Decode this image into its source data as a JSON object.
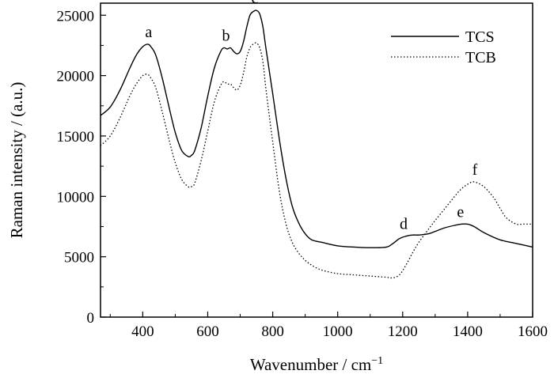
{
  "chart_data": {
    "type": "line",
    "title": "",
    "xlabel": "Wavenumber / cm",
    "xlabel_superscript": "−1",
    "ylabel": "Raman intensity / (a.u.)",
    "xlim": [
      270,
      1600
    ],
    "ylim": [
      0,
      26000
    ],
    "xticks": [
      400,
      600,
      800,
      1000,
      1200,
      1400,
      1600
    ],
    "xtick_labels": [
      "400",
      "600",
      "800",
      "1000",
      "1200",
      "1400",
      "1600"
    ],
    "yticks": [
      0,
      5000,
      10000,
      15000,
      20000,
      25000
    ],
    "ytick_labels": [
      "0",
      "5000",
      "10000",
      "15000",
      "20000",
      "25000"
    ],
    "grid": false,
    "legend_position": "top-right",
    "series": [
      {
        "name": "TCS",
        "line_style": "solid",
        "color": "#000000",
        "x": [
          270,
          300,
          330,
          360,
          380,
          400,
          415,
          425,
          440,
          460,
          480,
          500,
          520,
          540,
          550,
          560,
          580,
          600,
          620,
          640,
          650,
          660,
          670,
          680,
          690,
          700,
          710,
          720,
          730,
          740,
          750,
          760,
          770,
          780,
          800,
          820,
          840,
          860,
          880,
          900,
          920,
          950,
          1000,
          1050,
          1100,
          1150,
          1170,
          1190,
          1210,
          1230,
          1250,
          1280,
          1300,
          1330,
          1360,
          1380,
          1400,
          1420,
          1450,
          1500,
          1550,
          1600
        ],
        "y": [
          16700,
          17400,
          18800,
          20600,
          21700,
          22400,
          22600,
          22400,
          21700,
          19800,
          17500,
          15300,
          13800,
          13300,
          13400,
          13800,
          15700,
          18300,
          20600,
          22000,
          22300,
          22200,
          22300,
          22000,
          21800,
          22000,
          22800,
          24000,
          25000,
          25300,
          25400,
          25100,
          24000,
          22100,
          18500,
          14800,
          11600,
          9200,
          7800,
          6900,
          6400,
          6200,
          5900,
          5800,
          5750,
          5800,
          6100,
          6500,
          6700,
          6800,
          6800,
          6900,
          7100,
          7400,
          7600,
          7700,
          7700,
          7500,
          7000,
          6400,
          6100,
          5800
        ]
      },
      {
        "name": "TCB",
        "line_style": "dotted",
        "color": "#000000",
        "x": [
          270,
          300,
          330,
          360,
          380,
          400,
          415,
          425,
          440,
          460,
          480,
          500,
          520,
          540,
          550,
          560,
          580,
          600,
          620,
          640,
          650,
          660,
          670,
          680,
          690,
          700,
          710,
          720,
          730,
          740,
          750,
          760,
          770,
          780,
          800,
          820,
          840,
          860,
          880,
          900,
          920,
          950,
          1000,
          1050,
          1100,
          1150,
          1170,
          1190,
          1210,
          1230,
          1250,
          1280,
          1300,
          1330,
          1360,
          1380,
          1400,
          1420,
          1450,
          1480,
          1500,
          1520,
          1550,
          1570,
          1600
        ],
        "y": [
          14200,
          15000,
          16500,
          18300,
          19300,
          20000,
          20100,
          19800,
          19000,
          17000,
          14800,
          12800,
          11400,
          10800,
          10800,
          11100,
          13000,
          15400,
          17800,
          19200,
          19500,
          19300,
          19300,
          19000,
          18800,
          19200,
          20200,
          21500,
          22300,
          22600,
          22700,
          22300,
          21100,
          18700,
          14500,
          10500,
          7800,
          6200,
          5300,
          4700,
          4300,
          3900,
          3600,
          3500,
          3400,
          3300,
          3250,
          3500,
          4300,
          5300,
          6200,
          7300,
          8000,
          9000,
          10000,
          10600,
          11000,
          11200,
          10800,
          9900,
          9000,
          8200,
          7700,
          7700,
          7700
        ]
      }
    ],
    "annotations": [
      {
        "label": "a",
        "x": 418,
        "y": 23200
      },
      {
        "label": "b",
        "x": 656,
        "y": 22900
      },
      {
        "label": "c",
        "x": 745,
        "y": 26000
      },
      {
        "label": "d",
        "x": 1203,
        "y": 7300
      },
      {
        "label": "e",
        "x": 1378,
        "y": 8300
      },
      {
        "label": "f",
        "x": 1422,
        "y": 11800
      }
    ]
  }
}
